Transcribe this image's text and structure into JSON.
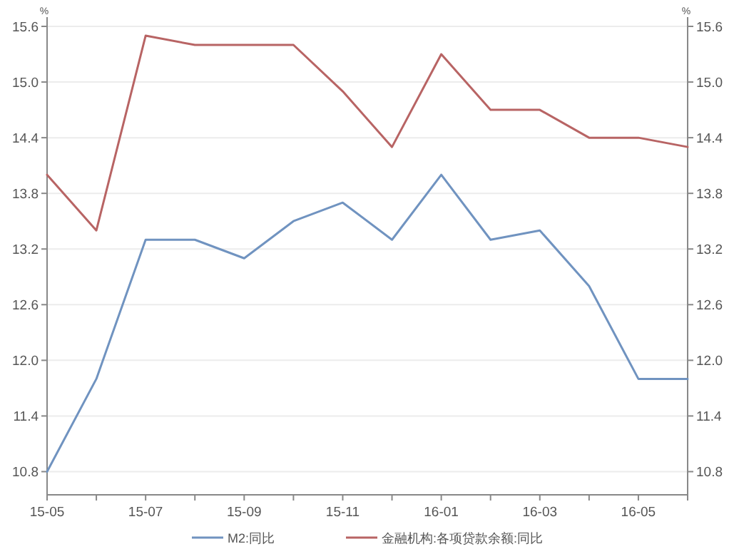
{
  "chart_data": {
    "type": "line",
    "ylabel": "%",
    "y2label": "%",
    "categories": [
      "15-05",
      null,
      "15-07",
      null,
      "15-09",
      null,
      "15-11",
      null,
      "16-01",
      null,
      "16-03",
      null,
      "16-05",
      null
    ],
    "series": [
      {
        "name": "M2:同比",
        "color": "#7093c0",
        "values": [
          10.8,
          11.8,
          13.3,
          13.3,
          13.1,
          13.5,
          13.7,
          13.3,
          14.0,
          13.3,
          13.4,
          12.8,
          11.8,
          11.8
        ]
      },
      {
        "name": "金融机构:各项贷款余额:同比",
        "color": "#b86464",
        "values": [
          14.0,
          13.4,
          15.5,
          15.4,
          15.4,
          15.4,
          14.9,
          14.3,
          15.3,
          14.7,
          14.7,
          14.4,
          14.4,
          14.3
        ]
      }
    ],
    "ylim": [
      10.55,
      15.7
    ],
    "yticks": [
      10.8,
      11.4,
      {
        "value": 12,
        "label": "12.0"
      },
      12.6,
      13.2,
      13.8,
      14.4,
      {
        "value": 15,
        "label": "15.0"
      },
      15.6
    ],
    "y2lim": [
      10.55,
      15.7
    ],
    "y2ticks": [
      10.8,
      11.4,
      {
        "value": 12,
        "label": "12.0"
      },
      12.6,
      13.2,
      13.8,
      14.4,
      {
        "value": 15,
        "label": "15.0"
      },
      15.6
    ],
    "grid": "y",
    "legend": "bottom",
    "marker": "none",
    "line_style": "solid"
  }
}
